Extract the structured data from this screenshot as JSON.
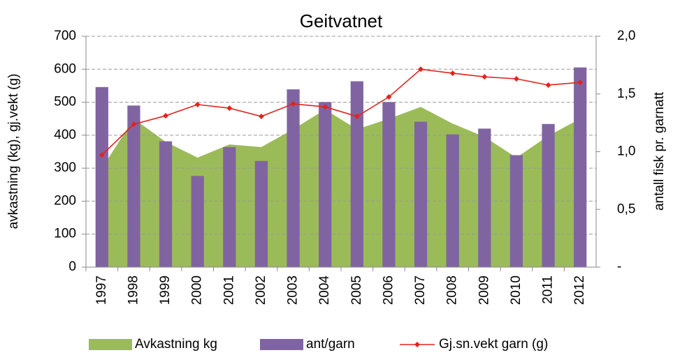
{
  "chart_data": {
    "type": "combo",
    "title": "Geitvatnet",
    "y_label": "avkastning (kg), gj.vekt (g)",
    "y2_label": "antall fisk pr. garnatt",
    "categories": [
      "1997",
      "1998",
      "1999",
      "2000",
      "2001",
      "2002",
      "2003",
      "2004",
      "2005",
      "2006",
      "2007",
      "2008",
      "2009",
      "2010",
      "2011",
      "2012"
    ],
    "ylim": [
      0,
      700
    ],
    "yticks": [
      0,
      100,
      200,
      300,
      400,
      500,
      600,
      700
    ],
    "y2lim": [
      0,
      2.0
    ],
    "y2ticks": [
      {
        "value": 0,
        "label": "-"
      },
      {
        "value": 0.5,
        "label": "0,5"
      },
      {
        "value": 1.0,
        "label": "1,0"
      },
      {
        "value": 1.5,
        "label": "1,5"
      },
      {
        "value": 2.0,
        "label": "2,0"
      }
    ],
    "grid": true,
    "series": [
      {
        "name": "Avkastning kg",
        "type": "area",
        "color": "#9bbb59",
        "values": [
          300,
          450,
          380,
          332,
          372,
          364,
          418,
          478,
          418,
          450,
          486,
          435,
          395,
          332,
          398,
          450
        ]
      },
      {
        "name": "ant/garn",
        "type": "bar",
        "axis": "y2",
        "color": "#8064a2",
        "values": [
          1.56,
          1.4,
          1.09,
          0.79,
          1.04,
          0.92,
          1.54,
          1.43,
          1.61,
          1.43,
          1.26,
          1.15,
          1.2,
          0.97,
          1.24,
          1.73
        ]
      },
      {
        "name": "Gj.sn.vekt garn (g)",
        "type": "line",
        "color": "#e3231b",
        "values": [
          340,
          433,
          459,
          493,
          482,
          457,
          495,
          486,
          457,
          516,
          600,
          588,
          577,
          571,
          552,
          560
        ]
      }
    ]
  }
}
